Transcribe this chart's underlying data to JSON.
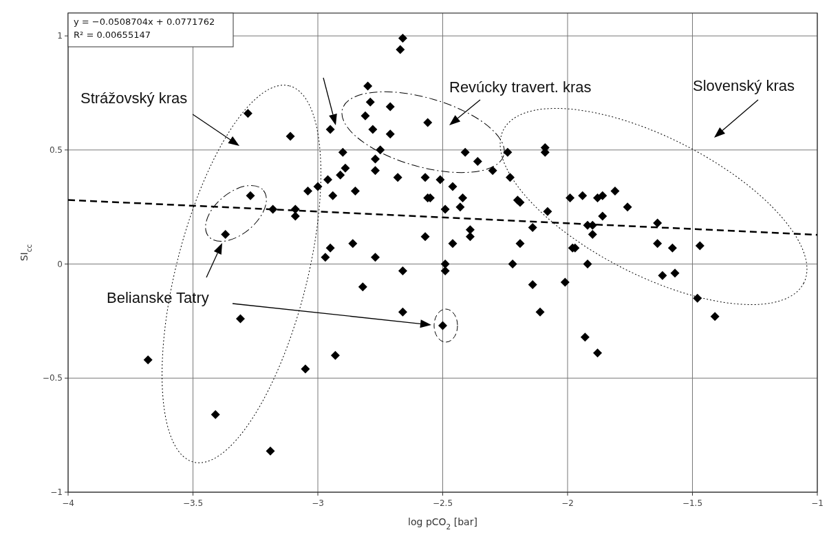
{
  "chart_data": {
    "type": "scatter",
    "xlabel": "log pCO$_{2}$ [bar]",
    "ylabel": "SI$_{cc}$",
    "xlim": [
      -4,
      -1
    ],
    "ylim": [
      -1,
      1.1
    ],
    "xticks": [
      {
        "value": -4,
        "label": "−4"
      },
      {
        "value": -3.5,
        "label": "−3.5"
      },
      {
        "value": -3,
        "label": "−3"
      },
      {
        "value": -2.5,
        "label": "−2.5"
      },
      {
        "value": -2,
        "label": "−2"
      },
      {
        "value": -1.5,
        "label": "−1.5"
      },
      {
        "value": -1,
        "label": "−1"
      }
    ],
    "yticks": [
      {
        "value": -1,
        "label": "−1"
      },
      {
        "value": -0.5,
        "label": "−0.5"
      },
      0,
      0.5,
      1
    ],
    "grid": true,
    "annotations": [
      "y = −0.0508704x + 0.0771762",
      "R² = 0.00655147",
      "Strážovský kras",
      "Revúcky travert. kras",
      "Slovenský kras",
      "Belianske Tatry"
    ],
    "series": [
      {
        "marker": "diamond",
        "color": "#000000",
        "x": [
          -3.28,
          -3.11,
          -3.27,
          -3.37,
          -3.18,
          -3.09,
          -3.09,
          -3.04,
          -3.0,
          -2.97,
          -2.66,
          -2.67,
          -2.8,
          -2.79,
          -2.71,
          -2.81,
          -2.56,
          -2.95,
          -2.78,
          -2.71,
          -2.9,
          -2.75,
          -2.77,
          -2.41,
          -2.24,
          -2.09,
          -2.09,
          -2.36,
          -2.77,
          -2.89,
          -2.91,
          -2.96,
          -2.68,
          -2.57,
          -2.51,
          -2.3,
          -2.23,
          -2.85,
          -2.94,
          -2.46,
          -2.56,
          -2.55,
          -2.42,
          -2.49,
          -2.43,
          -2.2,
          -2.19,
          -2.08,
          -1.99,
          -2.14,
          -2.39,
          -2.39,
          -2.57,
          -2.86,
          -2.95,
          -2.46,
          -2.19,
          -1.98,
          -2.77,
          -2.49,
          -2.49,
          -2.22,
          -2.66,
          -1.94,
          -1.88,
          -1.86,
          -1.81,
          -1.76,
          -1.86,
          -1.92,
          -1.9,
          -1.9,
          -1.97,
          -1.64,
          -1.64,
          -1.58,
          -1.47,
          -1.92,
          -2.14,
          -2.01,
          -2.11,
          -2.5,
          -1.93,
          -1.88,
          -1.62,
          -1.57,
          -1.48,
          -1.41,
          -2.82,
          -2.66,
          -3.31,
          -3.68,
          -2.93,
          -3.05,
          -3.41,
          -3.19
        ],
        "values": [
          0.66,
          0.56,
          0.3,
          0.13,
          0.24,
          0.24,
          0.21,
          0.32,
          0.34,
          0.03,
          0.99,
          0.94,
          0.78,
          0.71,
          0.69,
          0.65,
          0.62,
          0.59,
          0.59,
          0.57,
          0.49,
          0.5,
          0.46,
          0.49,
          0.49,
          0.51,
          0.49,
          0.45,
          0.41,
          0.42,
          0.39,
          0.37,
          0.38,
          0.38,
          0.37,
          0.41,
          0.38,
          0.32,
          0.3,
          0.34,
          0.29,
          0.29,
          0.29,
          0.24,
          0.25,
          0.28,
          0.27,
          0.23,
          0.29,
          0.16,
          0.15,
          0.12,
          0.12,
          0.09,
          0.07,
          0.09,
          0.09,
          0.07,
          0.03,
          0.0,
          -0.03,
          0.0,
          -0.03,
          0.3,
          0.29,
          0.3,
          0.32,
          0.25,
          0.21,
          0.17,
          0.17,
          0.13,
          0.07,
          0.18,
          0.09,
          0.07,
          0.08,
          0.0,
          -0.09,
          -0.08,
          -0.21,
          -0.27,
          -0.32,
          -0.39,
          -0.05,
          -0.04,
          -0.15,
          -0.23,
          -0.1,
          -0.21,
          -0.24,
          -0.42,
          -0.4,
          -0.46,
          -0.66,
          -0.82
        ]
      },
      {
        "type": "line",
        "color": "#000000",
        "line_style": "dashed",
        "x": [
          -4,
          -1
        ],
        "values": [
          0.281,
          0.128
        ]
      }
    ]
  }
}
